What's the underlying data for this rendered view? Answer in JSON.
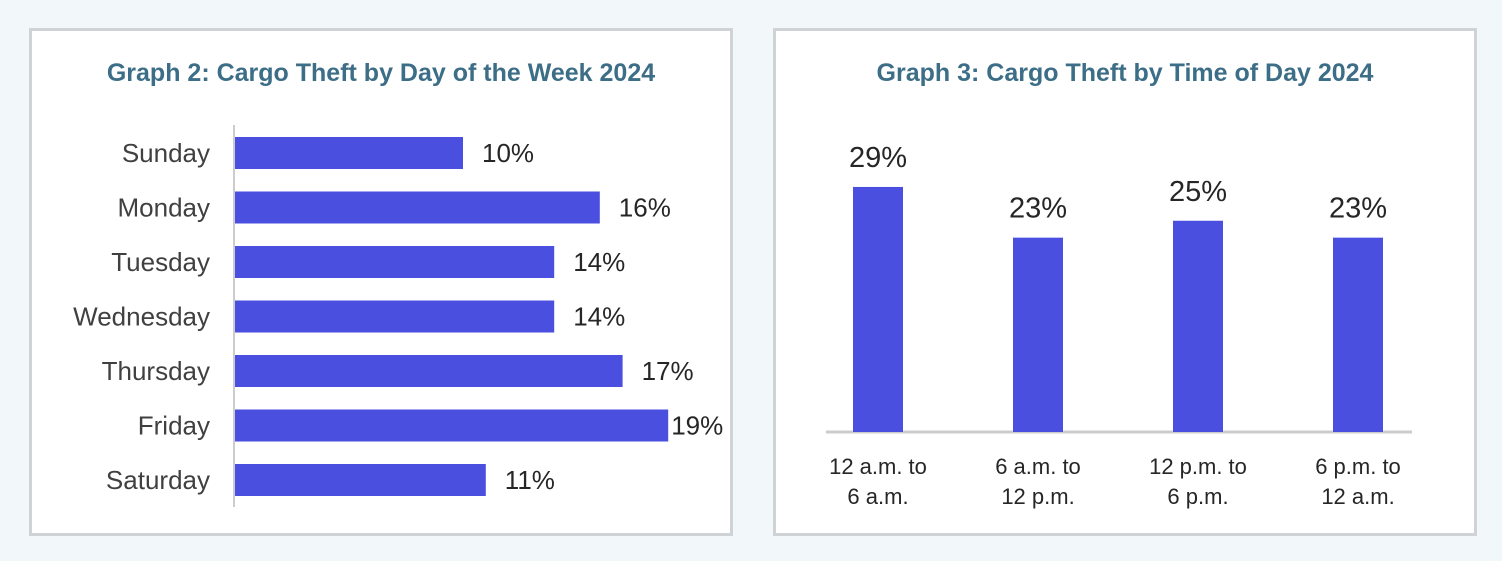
{
  "theme": {
    "bar_color": "#4a4fe0",
    "title_color": "#3d6e87",
    "axis_color": "#cccccc"
  },
  "chart_data": [
    {
      "type": "bar",
      "orientation": "horizontal",
      "title": "Graph 2: Cargo Theft by Day of the Week 2024",
      "categories": [
        "Sunday",
        "Monday",
        "Tuesday",
        "Wednesday",
        "Thursday",
        "Friday",
        "Saturday"
      ],
      "values": [
        10,
        16,
        14,
        14,
        17,
        19,
        11
      ],
      "value_labels": [
        "10%",
        "16%",
        "14%",
        "14%",
        "17%",
        "19%",
        "11%"
      ],
      "xlim": [
        0,
        20
      ],
      "grid": false
    },
    {
      "type": "bar",
      "orientation": "vertical",
      "title": "Graph 3: Cargo Theft by Time of Day 2024",
      "categories": [
        [
          "12 a.m. to",
          "6 a.m."
        ],
        [
          "6 a.m. to",
          "12 p.m."
        ],
        [
          "12 p.m. to",
          "6 p.m."
        ],
        [
          "6 p.m. to",
          "12 a.m."
        ]
      ],
      "values": [
        29,
        23,
        25,
        23
      ],
      "value_labels": [
        "29%",
        "23%",
        "25%",
        "23%"
      ],
      "ylim": [
        0,
        35
      ],
      "grid": false
    }
  ]
}
